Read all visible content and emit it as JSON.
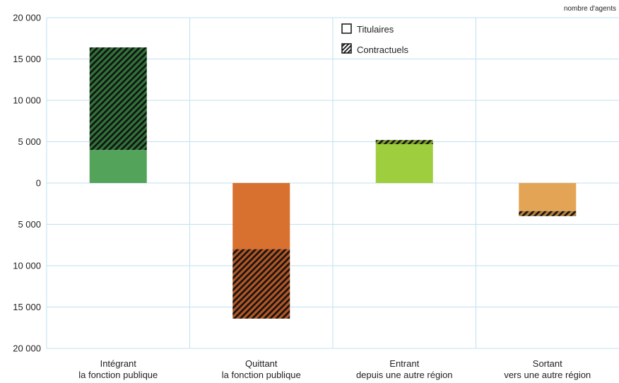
{
  "chart_data": {
    "type": "bar",
    "unit_label": "nombre d'agents",
    "categories": [
      [
        "Intégrant",
        "la fonction publique"
      ],
      [
        "Quittant",
        "la fonction publique"
      ],
      [
        "Entrant",
        "depuis une autre région"
      ],
      [
        "Sortant",
        "vers une autre région"
      ]
    ],
    "series": [
      {
        "name": "Titulaires",
        "pattern": "solid",
        "values": [
          4000,
          -8000,
          4700,
          -3400
        ]
      },
      {
        "name": "Contractuels",
        "pattern": "hatched",
        "values": [
          12400,
          -8400,
          500,
          -600
        ]
      }
    ],
    "bar_colors": [
      "#53a35b",
      "#d87030",
      "#9ecd3e",
      "#e3a555"
    ],
    "hatch_colors": [
      "#2f7238",
      "#b05523",
      "#7a9e2a",
      "#b07d3a"
    ],
    "ylim": [
      -20000,
      20000
    ],
    "yticks": [
      20000,
      15000,
      10000,
      5000,
      0,
      -5000,
      -10000,
      -15000,
      -20000
    ],
    "ytick_labels": [
      "20 000",
      "15 000",
      "10 000",
      "5 000",
      "0",
      "5 000",
      "10 000",
      "15 000",
      "20 000"
    ],
    "grid": true,
    "legend_position": "top-center"
  }
}
